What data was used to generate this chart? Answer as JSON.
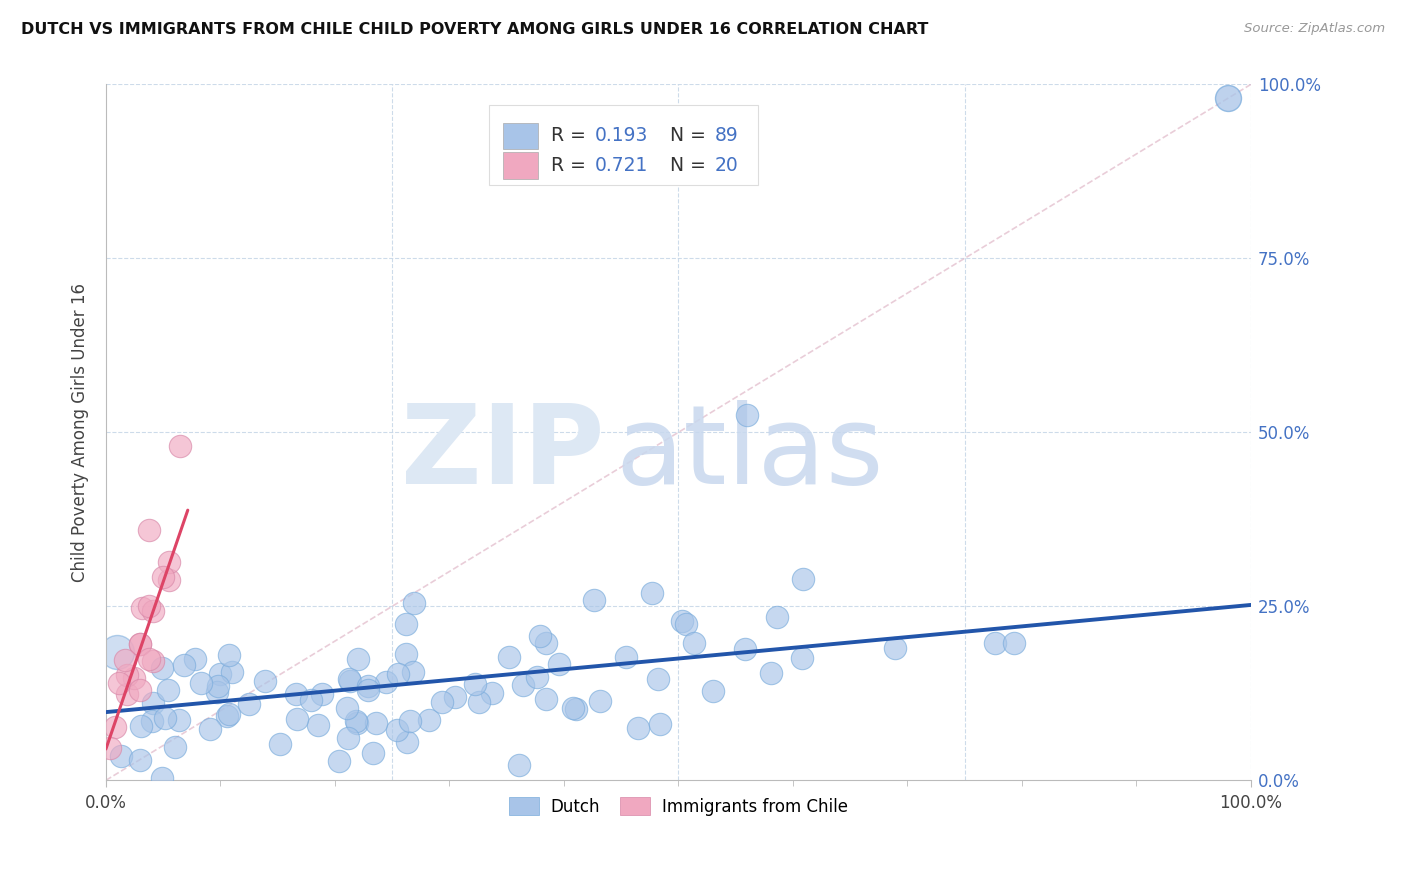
{
  "title": "DUTCH VS IMMIGRANTS FROM CHILE CHILD POVERTY AMONG GIRLS UNDER 16 CORRELATION CHART",
  "source": "Source: ZipAtlas.com",
  "ylabel": "Child Poverty Among Girls Under 16",
  "dutch_color": "#a8c4e8",
  "chile_color": "#f0a8c0",
  "dutch_line_color": "#2255aa",
  "chile_line_color": "#dd4466",
  "diagonal_color": "#e8c8d0",
  "grid_color": "#c8d8e8",
  "background_color": "#ffffff",
  "right_tick_color": "#4472c4",
  "legend_border_color": "#dddddd",
  "dutch_R": 0.193,
  "dutch_N": 89,
  "chile_R": 0.721,
  "chile_N": 20,
  "xlim": [
    0.0,
    1.0
  ],
  "ylim": [
    0.0,
    1.0
  ],
  "plot_ylim": [
    0.0,
    0.35
  ],
  "yticks_right": [
    0.0,
    0.25,
    0.5,
    0.75,
    1.0
  ],
  "ytick_labels_right": [
    "0.0%",
    "25.0%",
    "50.0%",
    "75.0%",
    "100.0%"
  ],
  "xticks": [
    0.0,
    1.0
  ],
  "xtick_labels": [
    "0.0%",
    "100.0%"
  ]
}
